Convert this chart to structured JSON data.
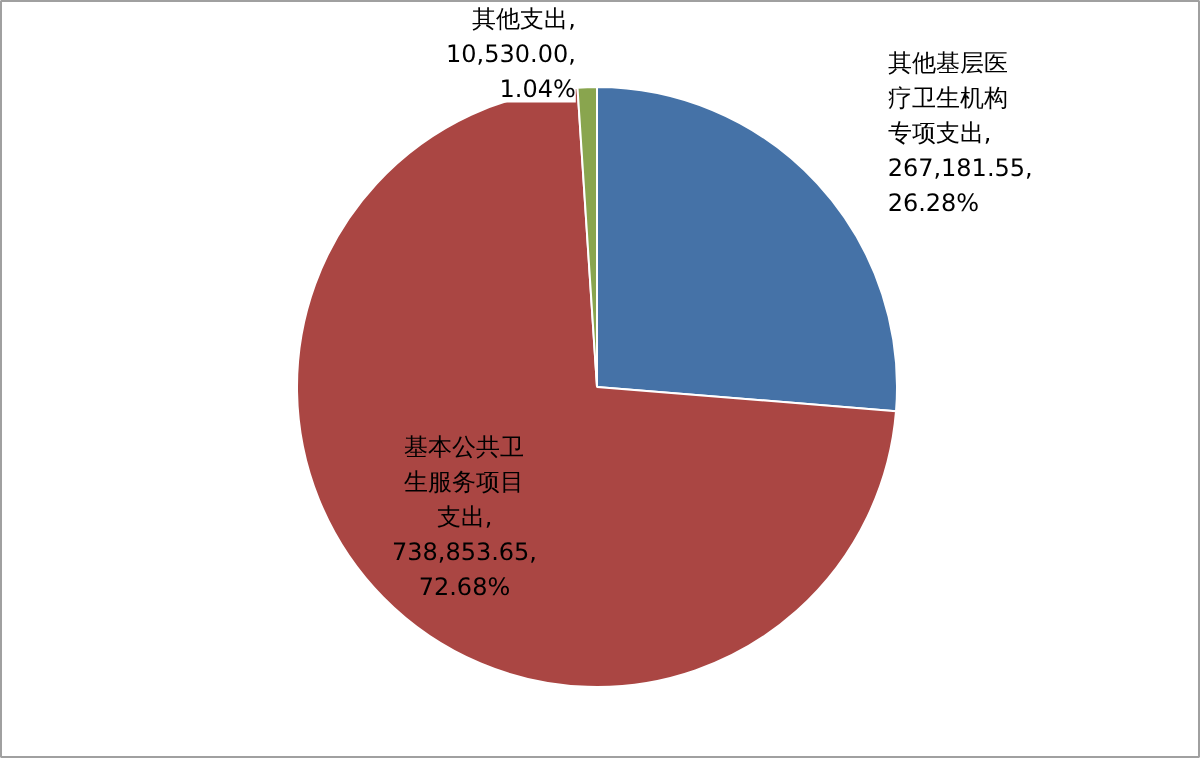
{
  "chart_data": {
    "type": "pie",
    "categories": [
      "其他基层医疗卫生机构专项支出",
      "基本公共卫生服务项目支出",
      "其他支出"
    ],
    "values": [
      267181.55,
      738853.65,
      10530.0
    ],
    "colors": [
      "#4572a7",
      "#aa4643",
      "#89a54e"
    ],
    "value_labels": [
      ",\n267,181.55,\n26.28%",
      ",\n738,853.65,\n72.68%",
      ",\n10,530.00,\n1.04%"
    ]
  }
}
